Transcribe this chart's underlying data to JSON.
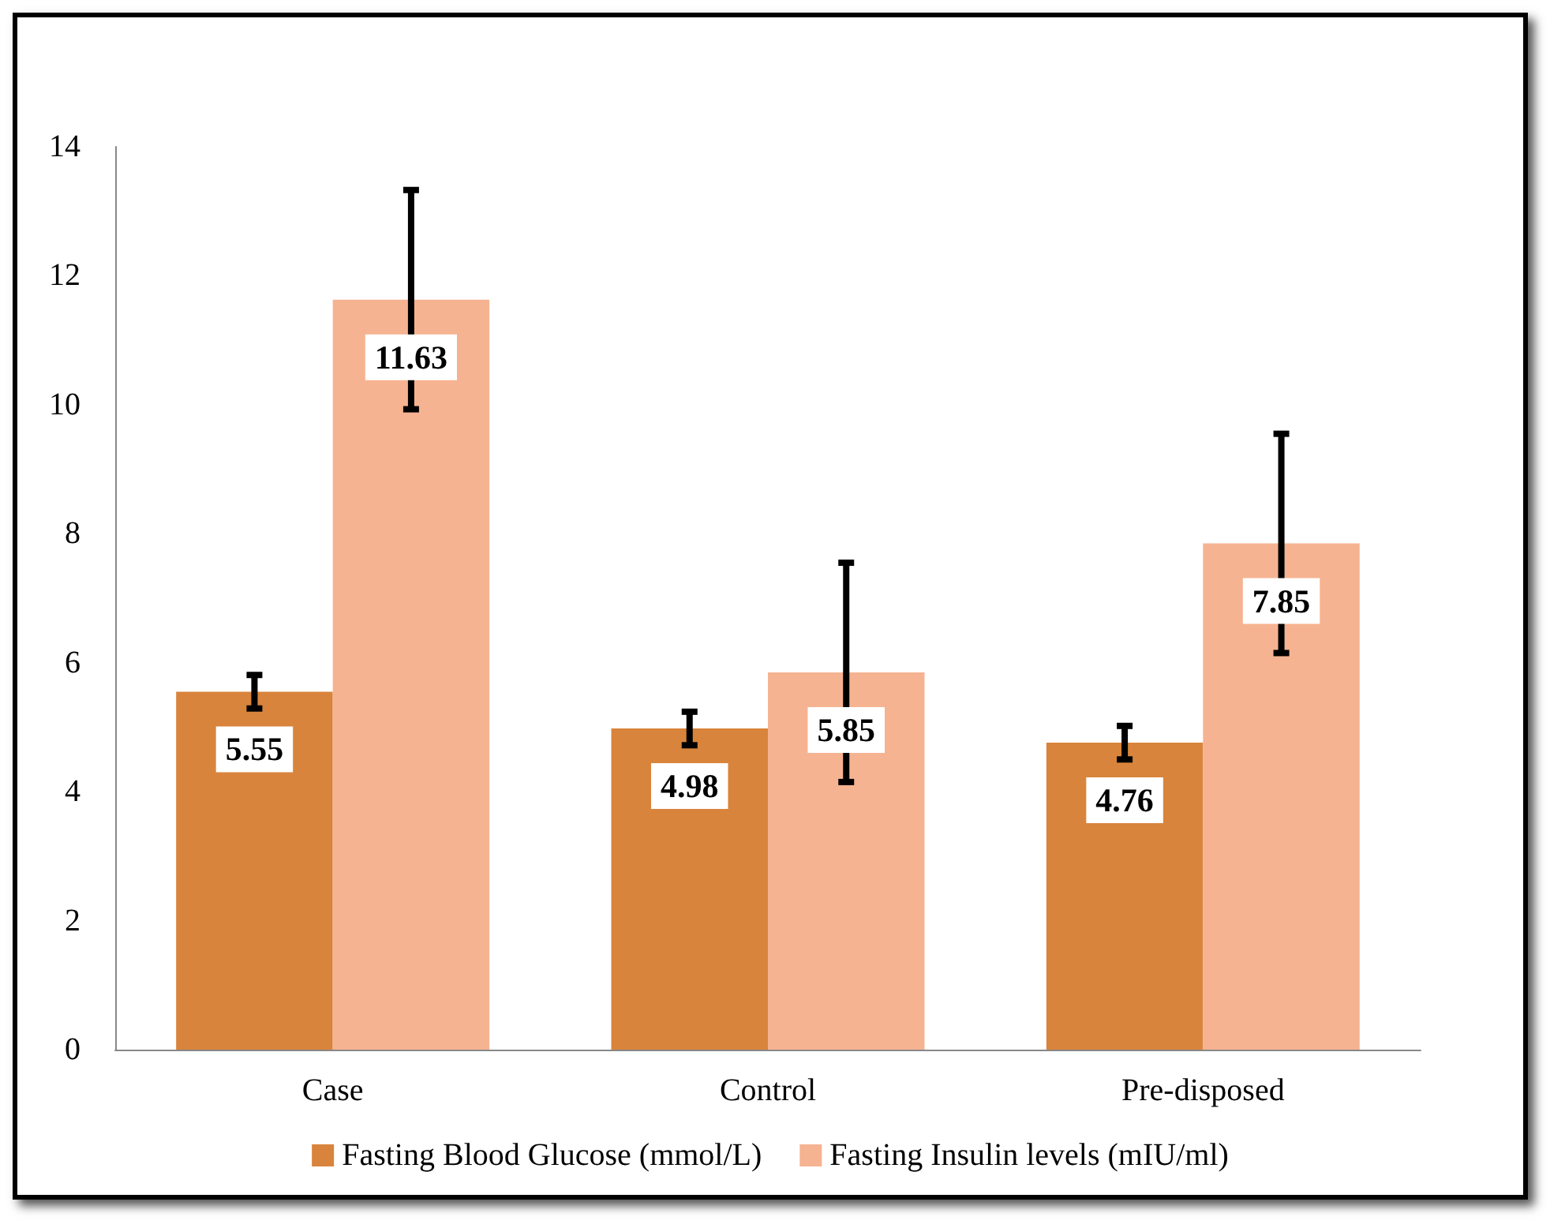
{
  "chart_data": {
    "type": "bar",
    "categories": [
      "Case",
      "Control",
      "Pre-disposed"
    ],
    "series": [
      {
        "name": "Fasting Blood Glucose (mmol/L)",
        "color": "#d9843c",
        "values": [
          5.55,
          4.98,
          4.76
        ],
        "errors": [
          0.26,
          0.26,
          0.26
        ]
      },
      {
        "name": "Fasting Insulin levels (mIU/ml)",
        "color": "#f6b391",
        "values": [
          11.63,
          5.85,
          7.85
        ],
        "errors": [
          1.7,
          1.7,
          1.7
        ]
      }
    ],
    "ylim": [
      0,
      14
    ],
    "yticks": [
      0,
      2,
      4,
      6,
      8,
      10,
      12,
      14
    ],
    "grid": false,
    "legend": "bottom",
    "data_labels": true
  }
}
